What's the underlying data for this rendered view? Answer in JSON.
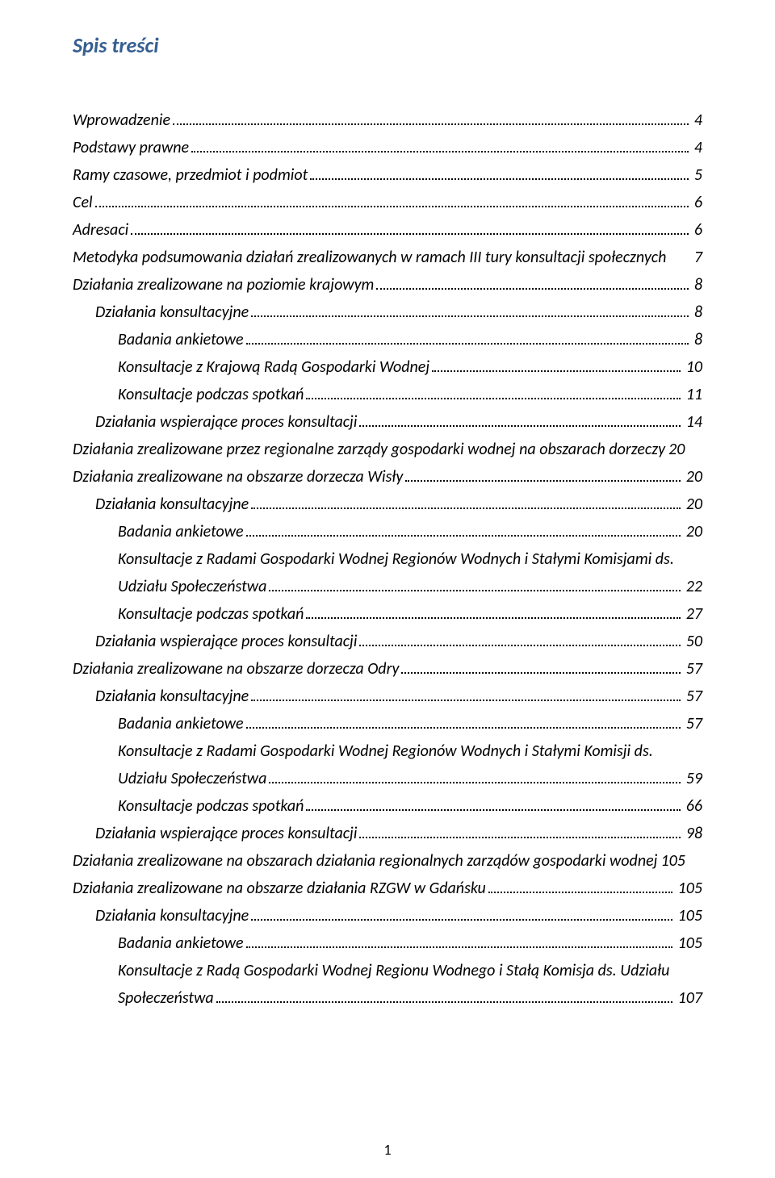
{
  "title": "Spis treści",
  "page_number": "1",
  "colors": {
    "heading": "#365f91",
    "text": "#000000",
    "background": "#ffffff"
  },
  "toc": {
    "e1": {
      "label": "Wprowadzenie",
      "page": "4"
    },
    "e2": {
      "label": "Podstawy prawne",
      "page": "4"
    },
    "e3": {
      "label": "Ramy czasowe, przedmiot i podmiot",
      "page": "5"
    },
    "e4": {
      "label": "Cel",
      "page": "6"
    },
    "e5": {
      "label": "Adresaci",
      "page": "6"
    },
    "e6": {
      "label": "Metodyka podsumowania działań zrealizowanych w ramach III tury konsultacji społecznych",
      "page": "7"
    },
    "e7": {
      "label": "Działania zrealizowane na poziomie krajowym",
      "page": "8"
    },
    "e8": {
      "label": "Działania konsultacyjne",
      "page": "8"
    },
    "e9": {
      "label": "Badania ankietowe",
      "page": "8"
    },
    "e10": {
      "label": "Konsultacje z Krajową Radą Gospodarki Wodnej",
      "page": "10"
    },
    "e11": {
      "label": "Konsultacje podczas spotkań",
      "page": "11"
    },
    "e12": {
      "label": "Działania wspierające proces konsultacji",
      "page": "14"
    },
    "e13": {
      "label": "Działania zrealizowane przez regionalne zarządy gospodarki wodnej na obszarach dorzeczy",
      "page": "20"
    },
    "e14": {
      "label": "Działania zrealizowane na obszarze dorzecza Wisły",
      "page": "20"
    },
    "e15": {
      "label": "Działania konsultacyjne",
      "page": "20"
    },
    "e16": {
      "label": "Badania ankietowe",
      "page": "20"
    },
    "e17a": {
      "label": "Konsultacje z Radami Gospodarki Wodnej Regionów Wodnych i  Stałymi  Komisjami ds."
    },
    "e17b": {
      "label": "Udziału Społeczeństwa",
      "page": "22"
    },
    "e18": {
      "label": "Konsultacje  podczas spotkań",
      "page": "27"
    },
    "e19": {
      "label": "Działania wspierające proces konsultacji",
      "page": "50"
    },
    "e20": {
      "label": "Działania zrealizowane na obszarze dorzecza Odry",
      "page": "57"
    },
    "e21": {
      "label": "Działania konsultacyjne",
      "page": "57"
    },
    "e22": {
      "label": "Badania ankietowe",
      "page": "57"
    },
    "e23a": {
      "label": "Konsultacje z Radami Gospodarki Wodnej Regionów Wodnych i Stałymi Komisji ds."
    },
    "e23b": {
      "label": "Udziału Społeczeństwa",
      "page": "59"
    },
    "e24": {
      "label": "Konsultacje  podczas spotkań",
      "page": "66"
    },
    "e25": {
      "label": "Działania wspierające proces konsultacji",
      "page": "98"
    },
    "e26": {
      "label": "Działania zrealizowane na obszarach działania regionalnych zarządów gospodarki wodnej",
      "page": "105"
    },
    "e27": {
      "label": "Działania zrealizowane na obszarze działania RZGW w Gdańsku",
      "page": "105"
    },
    "e28": {
      "label": "Działania konsultacyjne",
      "page": "105"
    },
    "e29": {
      "label": "Badania ankietowe",
      "page": "105"
    },
    "e30a": {
      "label": "Konsultacje z Radą Gospodarki Wodnej Regionu Wodnego i Stałą Komisja ds. Udziału"
    },
    "e30b": {
      "label": "Społeczeństwa",
      "page": "107"
    }
  }
}
